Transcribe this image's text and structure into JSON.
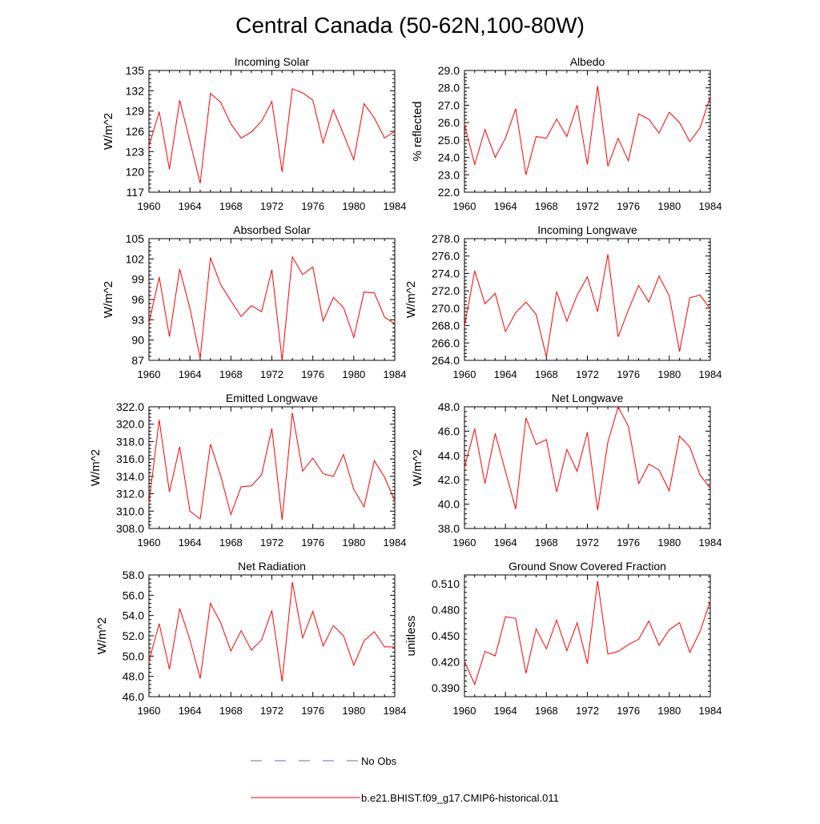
{
  "page": {
    "title": "Central Canada (50-62N,100-80W)"
  },
  "legend": {
    "placement": "bottom-center",
    "entries": [
      {
        "label": "No Obs",
        "color": "#5a6fd6",
        "style": "dashed"
      },
      {
        "label": "b.e21.BHIST.f09_g17.CMIP6-historical.011",
        "color": "#ff0000",
        "style": "solid"
      }
    ]
  },
  "colors": {
    "series": "#ff0000",
    "obs": "#5a6fd6"
  },
  "chart_data": [
    {
      "type": "line",
      "title": "Incoming Solar",
      "ylabel": "W/m^2",
      "x": [
        1960,
        1961,
        1962,
        1963,
        1964,
        1965,
        1966,
        1967,
        1968,
        1969,
        1970,
        1971,
        1972,
        1973,
        1974,
        1975,
        1976,
        1977,
        1978,
        1979,
        1980,
        1981,
        1982,
        1983,
        1984
      ],
      "values": [
        123.8,
        128.9,
        120.4,
        130.6,
        124.5,
        118.3,
        131.6,
        130.3,
        127.1,
        125.0,
        125.9,
        127.5,
        130.4,
        120.0,
        132.3,
        131.7,
        130.6,
        124.3,
        129.2,
        125.6,
        121.8,
        130.1,
        128.0,
        125.0,
        126.0
      ],
      "xlim": [
        1960,
        1984
      ],
      "ylim": [
        117,
        135
      ],
      "xticks": [
        "1960",
        "1964",
        "1968",
        "1972",
        "1976",
        "1980",
        "1984"
      ],
      "yticks": [
        "117",
        "120",
        "123",
        "126",
        "129",
        "132",
        "135"
      ],
      "grid": false
    },
    {
      "type": "line",
      "title": "Albedo",
      "ylabel": "% reflected",
      "x": [
        1960,
        1961,
        1962,
        1963,
        1964,
        1965,
        1966,
        1967,
        1968,
        1969,
        1970,
        1971,
        1972,
        1973,
        1974,
        1975,
        1976,
        1977,
        1978,
        1979,
        1980,
        1981,
        1982,
        1983,
        1984
      ],
      "values": [
        25.9,
        23.6,
        25.6,
        24.0,
        25.1,
        26.8,
        23.0,
        25.2,
        25.1,
        26.2,
        25.2,
        27.0,
        23.6,
        28.1,
        23.5,
        25.1,
        23.8,
        26.5,
        26.2,
        25.4,
        26.6,
        26.0,
        24.9,
        25.7,
        27.5
      ],
      "xlim": [
        1960,
        1984
      ],
      "ylim": [
        22.0,
        29.0
      ],
      "xticks": [
        "1960",
        "1964",
        "1968",
        "1972",
        "1976",
        "1980",
        "1984"
      ],
      "yticks": [
        "22.0",
        "23.0",
        "24.0",
        "25.0",
        "26.0",
        "27.0",
        "28.0",
        "29.0"
      ],
      "grid": false
    },
    {
      "type": "line",
      "title": "Absorbed Solar",
      "ylabel": "W/m^2",
      "x": [
        1960,
        1961,
        1962,
        1963,
        1964,
        1965,
        1966,
        1967,
        1968,
        1969,
        1970,
        1971,
        1972,
        1973,
        1974,
        1975,
        1976,
        1977,
        1978,
        1979,
        1980,
        1981,
        1982,
        1983,
        1984
      ],
      "values": [
        92.5,
        99.3,
        90.5,
        100.5,
        94.7,
        87.3,
        102.2,
        98.2,
        95.8,
        93.5,
        95.1,
        94.2,
        100.4,
        87.0,
        102.3,
        99.7,
        100.8,
        92.8,
        96.3,
        94.8,
        90.4,
        97.1,
        97.0,
        93.4,
        92.4
      ],
      "xlim": [
        1960,
        1984
      ],
      "ylim": [
        87,
        105
      ],
      "xticks": [
        "1960",
        "1964",
        "1968",
        "1972",
        "1976",
        "1980",
        "1984"
      ],
      "yticks": [
        "87",
        "90",
        "93",
        "96",
        "99",
        "102",
        "105"
      ],
      "grid": false
    },
    {
      "type": "line",
      "title": "Incoming Longwave",
      "ylabel": "W/m^2",
      "x": [
        1960,
        1961,
        1962,
        1963,
        1964,
        1965,
        1966,
        1967,
        1968,
        1969,
        1970,
        1971,
        1972,
        1973,
        1974,
        1975,
        1976,
        1977,
        1978,
        1979,
        1980,
        1981,
        1982,
        1983,
        1984
      ],
      "values": [
        267.9,
        274.3,
        270.5,
        271.7,
        267.3,
        269.5,
        270.7,
        269.3,
        264.4,
        271.9,
        268.5,
        271.5,
        273.6,
        269.6,
        276.2,
        266.7,
        269.8,
        272.6,
        270.7,
        273.7,
        271.4,
        265.0,
        271.2,
        271.5,
        269.9
      ],
      "xlim": [
        1960,
        1984
      ],
      "ylim": [
        264.0,
        278.0
      ],
      "xticks": [
        "1960",
        "1964",
        "1968",
        "1972",
        "1976",
        "1980",
        "1984"
      ],
      "yticks": [
        "264.0",
        "266.0",
        "268.0",
        "270.0",
        "272.0",
        "274.0",
        "276.0",
        "278.0"
      ],
      "grid": false
    },
    {
      "type": "line",
      "title": "Emitted Longwave",
      "ylabel": "W/m^2",
      "x": [
        1960,
        1961,
        1962,
        1963,
        1964,
        1965,
        1966,
        1967,
        1968,
        1969,
        1970,
        1971,
        1972,
        1973,
        1974,
        1975,
        1976,
        1977,
        1978,
        1979,
        1980,
        1981,
        1982,
        1983,
        1984
      ],
      "values": [
        310.9,
        320.5,
        312.2,
        317.4,
        310.0,
        309.1,
        317.7,
        314.1,
        309.6,
        312.8,
        312.9,
        314.2,
        319.5,
        309.0,
        321.3,
        314.6,
        316.1,
        314.3,
        314.0,
        316.5,
        312.5,
        310.5,
        315.8,
        313.9,
        311.2
      ],
      "xlim": [
        1960,
        1984
      ],
      "ylim": [
        308.0,
        322.0
      ],
      "xticks": [
        "1960",
        "1964",
        "1968",
        "1972",
        "1976",
        "1980",
        "1984"
      ],
      "yticks": [
        "308.0",
        "310.0",
        "312.0",
        "314.0",
        "316.0",
        "318.0",
        "320.0",
        "322.0"
      ],
      "grid": false
    },
    {
      "type": "line",
      "title": "Net Longwave",
      "ylabel": "W/m^2",
      "x": [
        1960,
        1961,
        1962,
        1963,
        1964,
        1965,
        1966,
        1967,
        1968,
        1969,
        1970,
        1971,
        1972,
        1973,
        1974,
        1975,
        1976,
        1977,
        1978,
        1979,
        1980,
        1981,
        1982,
        1983,
        1984
      ],
      "values": [
        43.0,
        46.2,
        41.7,
        45.8,
        42.7,
        39.6,
        47.1,
        44.9,
        45.3,
        41.0,
        44.5,
        42.7,
        45.9,
        39.5,
        45.1,
        48.0,
        46.4,
        41.7,
        43.3,
        42.8,
        41.1,
        45.6,
        44.7,
        42.4,
        41.3
      ],
      "xlim": [
        1960,
        1984
      ],
      "ylim": [
        38.0,
        48.0
      ],
      "xticks": [
        "1960",
        "1964",
        "1968",
        "1972",
        "1976",
        "1980",
        "1984"
      ],
      "yticks": [
        "38.0",
        "40.0",
        "42.0",
        "44.0",
        "46.0",
        "48.0"
      ],
      "grid": false
    },
    {
      "type": "line",
      "title": "Net Radiation",
      "ylabel": "W/m^2",
      "x": [
        1960,
        1961,
        1962,
        1963,
        1964,
        1965,
        1966,
        1967,
        1968,
        1969,
        1970,
        1971,
        1972,
        1973,
        1974,
        1975,
        1976,
        1977,
        1978,
        1979,
        1980,
        1981,
        1982,
        1983,
        1984
      ],
      "values": [
        49.5,
        53.2,
        48.7,
        54.7,
        51.6,
        47.8,
        55.2,
        53.3,
        50.5,
        52.5,
        50.6,
        51.6,
        54.5,
        47.5,
        57.3,
        51.8,
        54.4,
        51.0,
        53.0,
        52.0,
        49.1,
        51.5,
        52.4,
        50.9,
        50.9
      ],
      "xlim": [
        1960,
        1984
      ],
      "ylim": [
        46.0,
        58.0
      ],
      "xticks": [
        "1960",
        "1964",
        "1968",
        "1972",
        "1976",
        "1980",
        "1984"
      ],
      "yticks": [
        "46.0",
        "48.0",
        "50.0",
        "52.0",
        "54.0",
        "56.0",
        "58.0"
      ],
      "grid": false
    },
    {
      "type": "line",
      "title": "Ground Snow Covered Fraction",
      "ylabel": "unitless",
      "x": [
        1960,
        1961,
        1962,
        1963,
        1964,
        1965,
        1966,
        1967,
        1968,
        1969,
        1970,
        1971,
        1972,
        1973,
        1974,
        1975,
        1976,
        1977,
        1978,
        1979,
        1980,
        1981,
        1982,
        1983,
        1984
      ],
      "values": [
        0.421,
        0.394,
        0.432,
        0.427,
        0.472,
        0.47,
        0.407,
        0.458,
        0.435,
        0.468,
        0.433,
        0.465,
        0.418,
        0.513,
        0.429,
        0.432,
        0.44,
        0.446,
        0.467,
        0.439,
        0.457,
        0.465,
        0.431,
        0.455,
        0.49
      ],
      "xlim": [
        1960,
        1984
      ],
      "ylim": [
        0.38,
        0.52
      ],
      "xticks": [
        "1960",
        "1964",
        "1968",
        "1972",
        "1976",
        "1980",
        "1984"
      ],
      "yticks": [
        "0.390",
        "0.420",
        "0.450",
        "0.480",
        "0.510"
      ],
      "grid": false
    }
  ]
}
